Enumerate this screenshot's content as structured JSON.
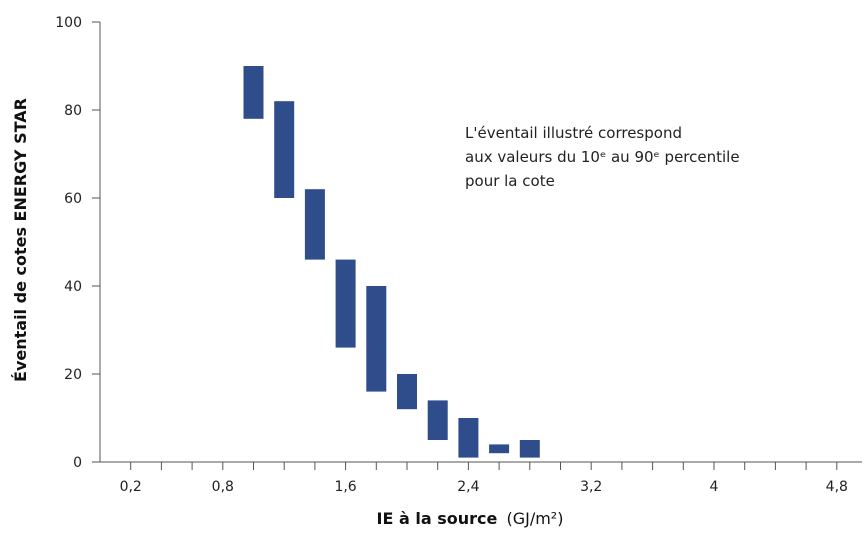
{
  "chart_data": {
    "type": "floating-bar",
    "xlabel": "IE à la source",
    "xlabel_unit": "(GJ/m²)",
    "ylabel": "Éventail de cotes ENERGY STAR",
    "x_tick_labels": [
      "0,2",
      "0,8",
      "1,6",
      "2,4",
      "3,2",
      "4",
      "4,8"
    ],
    "x_tick_values": [
      0.2,
      0.8,
      1.6,
      2.4,
      3.2,
      4.0,
      4.8
    ],
    "y_ticks": [
      0,
      20,
      40,
      60,
      80,
      100
    ],
    "ylim": [
      0,
      100
    ],
    "annotation": [
      "L'éventail illustré correspond",
      "aux valeurs du 10ᵉ au 90ᵉ percentile",
      "pour la cote"
    ],
    "bar_color": "#2e4d8a",
    "series": [
      {
        "bars": [
          {
            "x": 1.0,
            "low": 78,
            "high": 90
          },
          {
            "x": 1.2,
            "low": 60,
            "high": 82
          },
          {
            "x": 1.4,
            "low": 46,
            "high": 62
          },
          {
            "x": 1.6,
            "low": 26,
            "high": 46
          },
          {
            "x": 1.8,
            "low": 16,
            "high": 40
          },
          {
            "x": 2.0,
            "low": 12,
            "high": 20
          },
          {
            "x": 2.2,
            "low": 5,
            "high": 14
          },
          {
            "x": 2.4,
            "low": 1,
            "high": 10
          },
          {
            "x": 2.6,
            "low": 2,
            "high": 4
          },
          {
            "x": 2.8,
            "low": 1,
            "high": 5
          }
        ]
      }
    ]
  }
}
